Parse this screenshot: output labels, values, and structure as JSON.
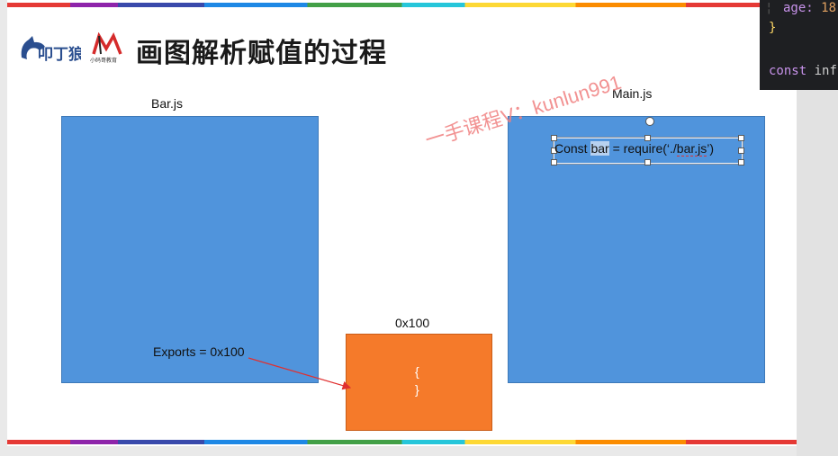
{
  "slide": {
    "title": "画图解析赋值的过程",
    "logo1_text": "叩丁狼",
    "logo2_text": "小码哥教育"
  },
  "bar_box": {
    "label": "Bar.js",
    "exports_text": "Exports = 0x100"
  },
  "main_box": {
    "label": "Main.js",
    "code_prefix": "Const ",
    "code_selected": "bar",
    "code_mid": " = require(‘./",
    "code_underlined": "bar.js",
    "code_suffix": "’)"
  },
  "memory_box": {
    "label": "0x100",
    "open_brace": "{",
    "close_brace": "}"
  },
  "watermark": "一手课程V：kunlun991",
  "code_panel": {
    "line1_key": "age:",
    "line1_val": " 18",
    "line2": "}",
    "line3_kw": "const",
    "line3_rest": " inf"
  },
  "colors": {
    "blue_box": "#5094dc",
    "orange_box": "#f57a2a",
    "arrow": "#e03030",
    "code_bg": "#1e1f22"
  }
}
